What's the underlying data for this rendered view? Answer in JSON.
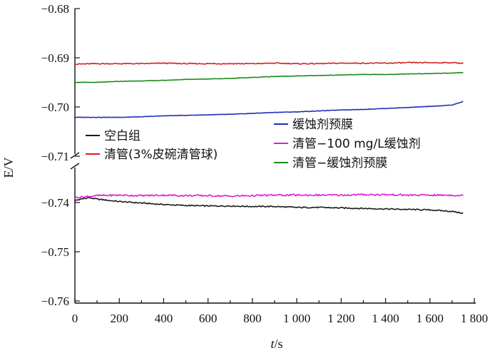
{
  "chart_data": {
    "type": "line",
    "title": "",
    "xlabel_italic": "t",
    "xlabel_unit": "/s",
    "ylabel": "E/V",
    "xlim": [
      0,
      1800
    ],
    "x_ticks": [
      0,
      200,
      400,
      600,
      800,
      1000,
      1200,
      1400,
      1600,
      1800
    ],
    "x_tick_labels": [
      "0",
      "200",
      "400",
      "600",
      "800",
      "1 000",
      "1 200",
      "1 400",
      "1 600",
      "1 800"
    ],
    "y_axis_broken": true,
    "y_upper_range": [
      -0.71,
      -0.68
    ],
    "y_lower_range": [
      -0.76,
      -0.735
    ],
    "y_upper_ticks": [
      -0.68,
      -0.69,
      -0.7,
      -0.71
    ],
    "y_upper_tick_labels": [
      "−0.68",
      "−0.69",
      "−0.70",
      "−0.71"
    ],
    "y_lower_ticks": [
      -0.74,
      -0.75,
      -0.76
    ],
    "y_lower_tick_labels": [
      "−0.74",
      "−0.75",
      "−0.76"
    ],
    "legend_left": [
      "空白组",
      "清管(3%皮碗清管球)"
    ],
    "legend_right": [
      "缓蚀剂预膜",
      "清管−100 mg/L缓蚀剂",
      "清管−缓蚀剂预膜"
    ],
    "series": [
      {
        "name": "空白组",
        "color": "#1a1a1a",
        "x": [
          0,
          60,
          100,
          200,
          300,
          400,
          500,
          600,
          700,
          800,
          900,
          1000,
          1100,
          1200,
          1300,
          1400,
          1500,
          1600,
          1700,
          1750
        ],
        "y": [
          -0.7396,
          -0.739,
          -0.7393,
          -0.7398,
          -0.7401,
          -0.7404,
          -0.7406,
          -0.7407,
          -0.7407,
          -0.7408,
          -0.7408,
          -0.741,
          -0.741,
          -0.7411,
          -0.7412,
          -0.7413,
          -0.7414,
          -0.7415,
          -0.7418,
          -0.7422
        ]
      },
      {
        "name": "清管(3%皮碗清管球)",
        "color": "#d42020",
        "x": [
          0,
          100,
          200,
          300,
          400,
          500,
          600,
          700,
          800,
          900,
          1000,
          1100,
          1200,
          1300,
          1400,
          1500,
          1600,
          1700,
          1750
        ],
        "y": [
          -0.6913,
          -0.6912,
          -0.6912,
          -0.6912,
          -0.6911,
          -0.6912,
          -0.6912,
          -0.6912,
          -0.6912,
          -0.6911,
          -0.6912,
          -0.6912,
          -0.6911,
          -0.6911,
          -0.6911,
          -0.691,
          -0.691,
          -0.691,
          -0.6911
        ]
      },
      {
        "name": "缓蚀剂预膜",
        "color": "#1f2fb5",
        "x": [
          0,
          100,
          200,
          300,
          350,
          400,
          500,
          600,
          700,
          800,
          900,
          1000,
          1100,
          1200,
          1300,
          1400,
          1500,
          1600,
          1700,
          1750
        ],
        "y": [
          -0.7021,
          -0.7021,
          -0.7021,
          -0.702,
          -0.7019,
          -0.7018,
          -0.7017,
          -0.7016,
          -0.7015,
          -0.7013,
          -0.7011,
          -0.701,
          -0.7008,
          -0.7006,
          -0.7005,
          -0.7003,
          -0.7001,
          -0.6999,
          -0.6996,
          -0.6989
        ]
      },
      {
        "name": "清管−100 mg/L缓蚀剂",
        "color": "#d620d6",
        "x": [
          0,
          50,
          100,
          200,
          300,
          400,
          500,
          600,
          700,
          800,
          900,
          1000,
          1100,
          1200,
          1300,
          1400,
          1500,
          1600,
          1700,
          1750
        ],
        "y": [
          -0.739,
          -0.7388,
          -0.7386,
          -0.7385,
          -0.7386,
          -0.7385,
          -0.7386,
          -0.7386,
          -0.7387,
          -0.7386,
          -0.7385,
          -0.7385,
          -0.7385,
          -0.7385,
          -0.7384,
          -0.7384,
          -0.7385,
          -0.7385,
          -0.7385,
          -0.7386
        ]
      },
      {
        "name": "清管−缓蚀剂预膜",
        "color": "#1a8a1a",
        "x": [
          0,
          100,
          200,
          300,
          400,
          500,
          600,
          700,
          800,
          900,
          1000,
          1100,
          1200,
          1300,
          1400,
          1500,
          1600,
          1700,
          1750
        ],
        "y": [
          -0.695,
          -0.695,
          -0.6948,
          -0.6947,
          -0.6946,
          -0.6944,
          -0.6943,
          -0.6942,
          -0.694,
          -0.6938,
          -0.6937,
          -0.6936,
          -0.6935,
          -0.6934,
          -0.6934,
          -0.6933,
          -0.6932,
          -0.6931,
          -0.693
        ]
      }
    ]
  }
}
